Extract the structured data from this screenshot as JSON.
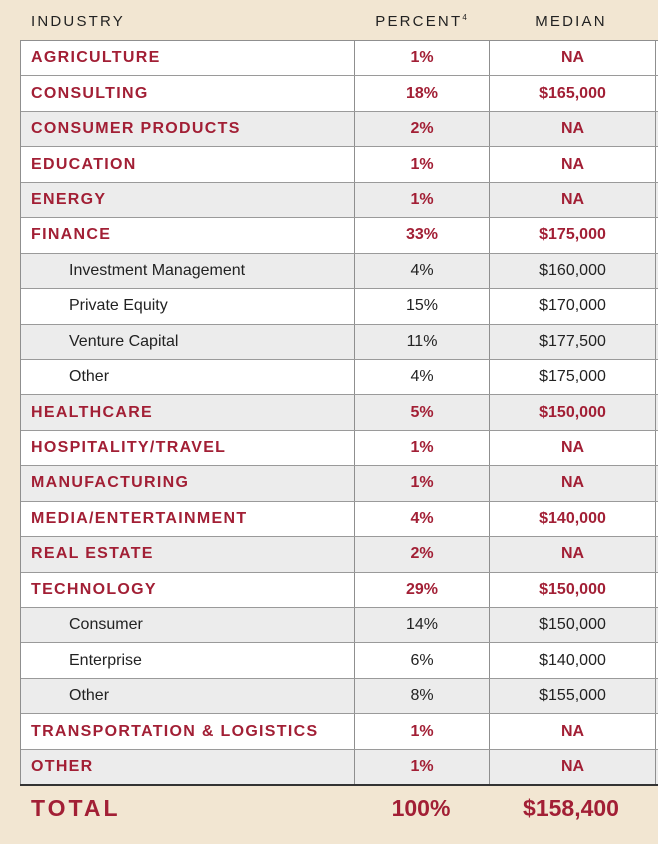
{
  "header": {
    "industry": "INDUSTRY",
    "percent": "PERCENT",
    "percent_footnote": "4",
    "median": "MEDIAN"
  },
  "rows": [
    {
      "industry": "AGRICULTURE",
      "percent": "1%",
      "median": "NA",
      "kind": "major"
    },
    {
      "industry": "CONSULTING",
      "percent": "18%",
      "median": "$165,000",
      "kind": "major"
    },
    {
      "industry": "CONSUMER PRODUCTS",
      "percent": "2%",
      "median": "NA",
      "kind": "major"
    },
    {
      "industry": "EDUCATION",
      "percent": "1%",
      "median": "NA",
      "kind": "major"
    },
    {
      "industry": "ENERGY",
      "percent": "1%",
      "median": "NA",
      "kind": "major"
    },
    {
      "industry": "FINANCE",
      "percent": "33%",
      "median": "$175,000",
      "kind": "major"
    },
    {
      "industry": "Investment Management",
      "percent": "4%",
      "median": "$160,000",
      "kind": "sub"
    },
    {
      "industry": "Private Equity",
      "percent": "15%",
      "median": "$170,000",
      "kind": "sub"
    },
    {
      "industry": "Venture Capital",
      "percent": "11%",
      "median": "$177,500",
      "kind": "sub"
    },
    {
      "industry": "Other",
      "percent": "4%",
      "median": "$175,000",
      "kind": "sub"
    },
    {
      "industry": "HEALTHCARE",
      "percent": "5%",
      "median": "$150,000",
      "kind": "major"
    },
    {
      "industry": "HOSPITALITY/TRAVEL",
      "percent": "1%",
      "median": "NA",
      "kind": "major"
    },
    {
      "industry": "MANUFACTURING",
      "percent": "1%",
      "median": "NA",
      "kind": "major"
    },
    {
      "industry": "MEDIA/ENTERTAINMENT",
      "percent": "4%",
      "median": "$140,000",
      "kind": "major"
    },
    {
      "industry": "REAL ESTATE",
      "percent": "2%",
      "median": "NA",
      "kind": "major"
    },
    {
      "industry": "TECHNOLOGY",
      "percent": "29%",
      "median": "$150,000",
      "kind": "major"
    },
    {
      "industry": "Consumer",
      "percent": "14%",
      "median": "$150,000",
      "kind": "sub"
    },
    {
      "industry": "Enterprise",
      "percent": "6%",
      "median": "$140,000",
      "kind": "sub"
    },
    {
      "industry": "Other",
      "percent": "8%",
      "median": "$155,000",
      "kind": "sub"
    },
    {
      "industry": "TRANSPORTATION & LOGISTICS",
      "percent": "1%",
      "median": "NA",
      "kind": "major"
    },
    {
      "industry": "OTHER",
      "percent": "1%",
      "median": "NA",
      "kind": "major"
    }
  ],
  "total": {
    "label": "TOTAL",
    "percent": "100%",
    "median": "$158,400"
  },
  "colors": {
    "accent": "#a21f35",
    "background": "#f2e6d2",
    "row_alt": "#ececec"
  }
}
